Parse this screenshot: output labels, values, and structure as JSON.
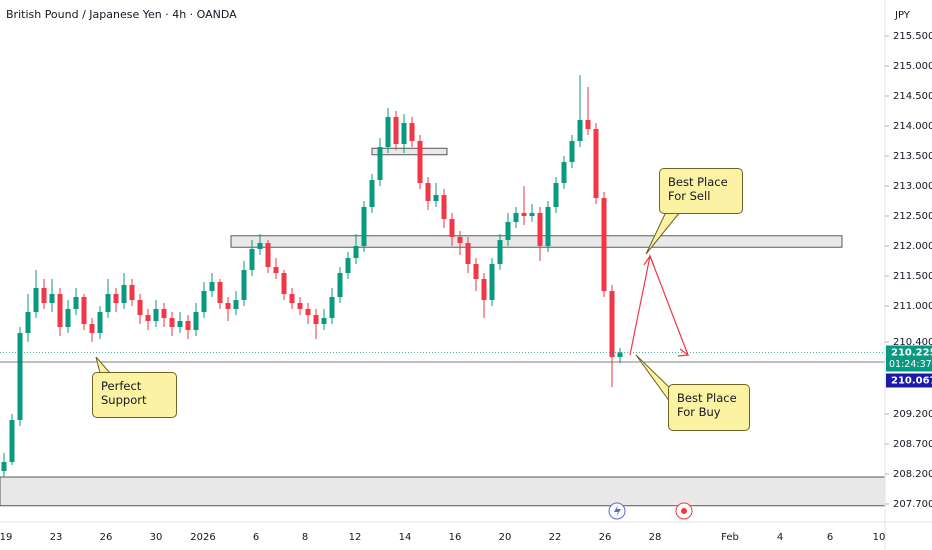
{
  "chart_data": {
    "type": "candlestick",
    "title": "British Pound / Japanese Yen · 4h · OANDA",
    "currency": "JPY",
    "up_color": "#089981",
    "down_color": "#f23645",
    "ylim": [
      207.4,
      216.1
    ],
    "yticks": [
      {
        "value": 215.5,
        "label": "215.500"
      },
      {
        "value": 215,
        "label": "215.000"
      },
      {
        "value": 214.5,
        "label": "214.500"
      },
      {
        "value": 214,
        "label": "214.000"
      },
      {
        "value": 213.5,
        "label": "213.500"
      },
      {
        "value": 213,
        "label": "213.000"
      },
      {
        "value": 212.5,
        "label": "212.500"
      },
      {
        "value": 212,
        "label": "212.000"
      },
      {
        "value": 211.5,
        "label": "211.500"
      },
      {
        "value": 211,
        "label": "211.000"
      },
      {
        "value": 210.4,
        "label": "210.400"
      },
      {
        "value": 209.2,
        "label": "209.200"
      },
      {
        "value": 208.7,
        "label": "208.700"
      },
      {
        "value": 208.2,
        "label": "208.200"
      },
      {
        "value": 207.7,
        "label": "207.700"
      }
    ],
    "categories": [
      "19",
      "23",
      "26",
      "30",
      "2026",
      "6",
      "8",
      "12",
      "14",
      "16",
      "20",
      "22",
      "26",
      "28",
      "Feb",
      "4",
      "6",
      "10"
    ],
    "candles": [
      [
        208.25,
        208.55,
        208.15,
        208.4
      ],
      [
        208.4,
        209.2,
        208.35,
        209.1
      ],
      [
        209.1,
        210.65,
        209.0,
        210.55
      ],
      [
        210.55,
        211.2,
        210.4,
        210.9
      ],
      [
        210.9,
        211.6,
        210.8,
        211.3
      ],
      [
        211.3,
        211.45,
        210.95,
        211.05
      ],
      [
        211.05,
        211.45,
        210.9,
        211.2
      ],
      [
        211.2,
        211.3,
        210.5,
        210.65
      ],
      [
        210.65,
        211.1,
        210.55,
        210.95
      ],
      [
        210.95,
        211.3,
        210.85,
        211.15
      ],
      [
        211.15,
        211.2,
        210.6,
        210.7
      ],
      [
        210.7,
        210.8,
        210.4,
        210.55
      ],
      [
        210.55,
        211.0,
        210.45,
        210.9
      ],
      [
        210.9,
        211.45,
        210.8,
        211.2
      ],
      [
        211.2,
        211.3,
        210.9,
        211.05
      ],
      [
        211.05,
        211.55,
        210.95,
        211.35
      ],
      [
        211.35,
        211.45,
        211.0,
        211.1
      ],
      [
        211.1,
        211.2,
        210.7,
        210.85
      ],
      [
        210.85,
        210.95,
        210.6,
        210.75
      ],
      [
        210.75,
        211.1,
        210.65,
        210.95
      ],
      [
        210.95,
        211.05,
        210.65,
        210.8
      ],
      [
        210.8,
        210.9,
        210.5,
        210.65
      ],
      [
        210.65,
        210.9,
        210.55,
        210.75
      ],
      [
        210.75,
        210.85,
        210.45,
        210.6
      ],
      [
        210.6,
        211.05,
        210.5,
        210.9
      ],
      [
        210.9,
        211.4,
        210.8,
        211.25
      ],
      [
        211.25,
        211.55,
        211.15,
        211.4
      ],
      [
        211.4,
        211.45,
        210.95,
        211.05
      ],
      [
        211.05,
        211.15,
        210.75,
        210.95
      ],
      [
        210.95,
        211.25,
        210.85,
        211.1
      ],
      [
        211.1,
        211.75,
        211.0,
        211.6
      ],
      [
        211.6,
        212.1,
        211.5,
        211.95
      ],
      [
        211.95,
        212.2,
        211.85,
        212.05
      ],
      [
        212.05,
        212.1,
        211.55,
        211.65
      ],
      [
        211.65,
        211.8,
        211.45,
        211.55
      ],
      [
        211.55,
        211.6,
        211.1,
        211.2
      ],
      [
        211.2,
        211.3,
        210.95,
        211.05
      ],
      [
        211.05,
        211.15,
        210.85,
        210.95
      ],
      [
        210.95,
        211.05,
        210.7,
        210.85
      ],
      [
        210.85,
        210.95,
        210.45,
        210.7
      ],
      [
        210.7,
        210.95,
        210.6,
        210.8
      ],
      [
        210.8,
        211.3,
        210.7,
        211.15
      ],
      [
        211.15,
        211.65,
        211.05,
        211.55
      ],
      [
        211.55,
        211.9,
        211.45,
        211.8
      ],
      [
        211.8,
        212.2,
        211.7,
        212.0
      ],
      [
        212.0,
        212.75,
        211.9,
        212.65
      ],
      [
        212.65,
        213.2,
        212.55,
        213.1
      ],
      [
        213.1,
        213.8,
        213.0,
        213.65
      ],
      [
        213.65,
        214.3,
        213.55,
        214.15
      ],
      [
        214.15,
        214.25,
        213.6,
        213.7
      ],
      [
        213.7,
        214.2,
        213.55,
        214.05
      ],
      [
        214.05,
        214.15,
        213.65,
        213.75
      ],
      [
        213.75,
        213.85,
        212.95,
        213.05
      ],
      [
        213.05,
        213.15,
        212.6,
        212.75
      ],
      [
        212.75,
        213.05,
        212.65,
        212.85
      ],
      [
        212.85,
        212.95,
        212.3,
        212.45
      ],
      [
        212.45,
        212.55,
        212.0,
        212.15
      ],
      [
        212.15,
        212.25,
        211.85,
        212.05
      ],
      [
        212.05,
        212.15,
        211.55,
        211.7
      ],
      [
        211.7,
        211.8,
        211.25,
        211.45
      ],
      [
        211.45,
        211.55,
        210.8,
        211.1
      ],
      [
        211.1,
        211.8,
        211.0,
        211.7
      ],
      [
        211.7,
        212.2,
        211.6,
        212.1
      ],
      [
        212.1,
        212.55,
        212.0,
        212.4
      ],
      [
        212.4,
        212.65,
        212.3,
        212.55
      ],
      [
        212.55,
        213.0,
        212.35,
        212.5
      ],
      [
        212.5,
        212.7,
        212.4,
        212.55
      ],
      [
        212.55,
        212.65,
        211.75,
        212.0
      ],
      [
        212.0,
        212.75,
        211.9,
        212.65
      ],
      [
        212.65,
        213.15,
        212.55,
        213.05
      ],
      [
        213.05,
        213.5,
        212.95,
        213.4
      ],
      [
        213.4,
        213.85,
        213.3,
        213.75
      ],
      [
        213.75,
        214.85,
        213.65,
        214.1
      ],
      [
        214.1,
        214.65,
        213.85,
        213.95
      ],
      [
        213.95,
        214.05,
        212.7,
        212.8
      ],
      [
        212.8,
        212.9,
        211.15,
        211.25
      ],
      [
        211.25,
        211.35,
        209.65,
        210.15
      ],
      [
        210.15,
        210.3,
        210.05,
        210.225
      ]
    ],
    "zones": [
      {
        "from": 213.52,
        "to": 213.63
      },
      {
        "from": 211.98,
        "to": 212.17
      },
      {
        "from": 207.67,
        "to": 208.15
      }
    ],
    "last_price": 210.225,
    "countdown": "01:24:37",
    "level": 210.067,
    "annotations": [
      "Perfect Support",
      "Best Place For Sell",
      "Best Place For Buy"
    ]
  }
}
